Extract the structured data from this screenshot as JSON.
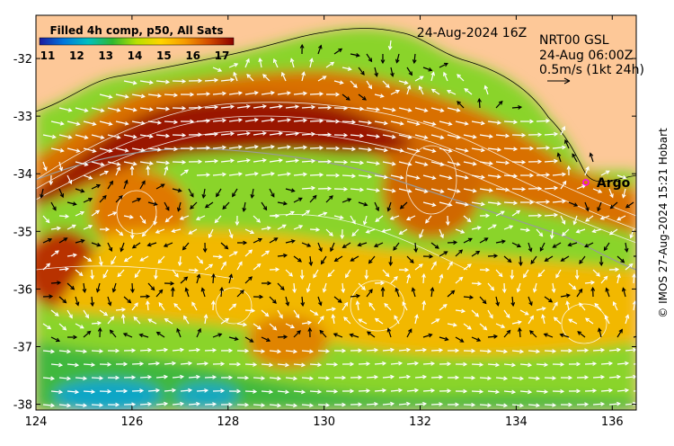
{
  "legend": {
    "title": "Filled 4h comp, p50, All Sats",
    "ticks": [
      "11",
      "12",
      "13",
      "14",
      "15",
      "16",
      "17"
    ],
    "colors": [
      "#1a1aa0",
      "#0077dd",
      "#00c0c0",
      "#30b830",
      "#b8e000",
      "#ffd400",
      "#f59a00",
      "#d24a00",
      "#8a0000"
    ]
  },
  "header": {
    "timestamp": "24-Aug-2024 16Z",
    "product": "NRT00 GSL",
    "product_time": "24-Aug 06:00Z",
    "scale_label": "0.5m/s (1kt 24h)"
  },
  "argo": {
    "label": "Argo",
    "lon": 135.45,
    "lat": -34.15,
    "marker_color": "#ff00ff"
  },
  "credit": "© IMOS 27-Aug-2024 15:21 Hobart",
  "axes": {
    "x_ticks": [
      "124",
      "126",
      "128",
      "130",
      "132",
      "134",
      "136"
    ],
    "y_ticks": [
      "-32",
      "-33",
      "-34",
      "-35",
      "-36",
      "-37",
      "-38"
    ],
    "lon_range": [
      124,
      136.5
    ],
    "lat_range": [
      -38.1,
      -31.25
    ]
  },
  "colors": {
    "land": "#fdc898",
    "frame": "#000000"
  }
}
